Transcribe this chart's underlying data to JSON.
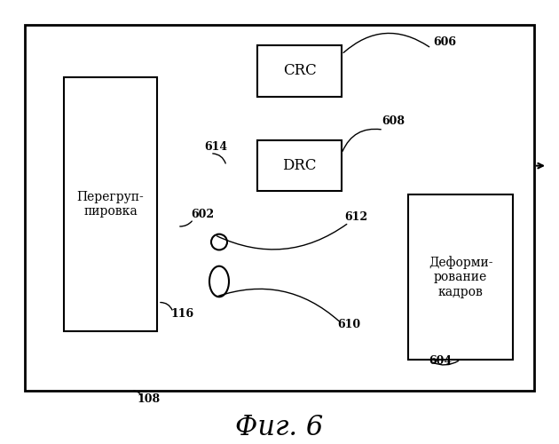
{
  "fig_title": "Фиг. 6",
  "bg_color": "#ffffff",
  "labels": {
    "regroup": "Перегруп-\nпировка",
    "crc": "CRC",
    "drc": "DRC",
    "deform": "Деформи-\nрование\nкадров",
    "n606": "606",
    "n608": "608",
    "n614": "614",
    "n602": "602",
    "n612": "612",
    "n610": "610",
    "n116": "116",
    "n604": "604",
    "n108": "108"
  }
}
